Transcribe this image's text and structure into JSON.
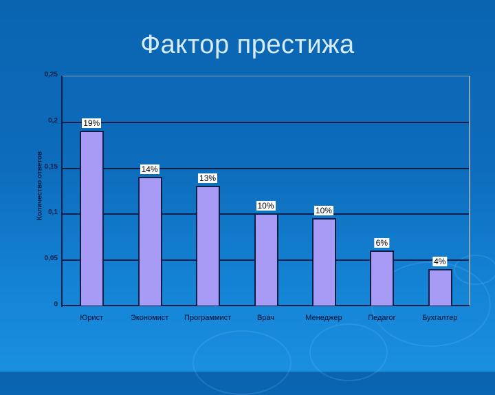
{
  "slide": {
    "title": "Фактор престижа"
  },
  "chart_data": {
    "type": "bar",
    "title": "Фактор престижа",
    "xlabel": "",
    "ylabel": "Количество ответов",
    "categories": [
      "Юрист",
      "Экономист",
      "Программист",
      "Врач",
      "Менеджер",
      "Педагог",
      "Бухгалтер"
    ],
    "values": [
      0.19,
      0.14,
      0.13,
      0.1,
      0.095,
      0.06,
      0.04
    ],
    "data_labels": [
      "19%",
      "14%",
      "13%",
      "10%",
      "10%",
      "6%",
      "4%"
    ],
    "ylim": [
      0,
      0.25
    ],
    "yticks": [
      "0",
      "0,05",
      "0,1",
      "0,15",
      "0,2",
      "0,25"
    ],
    "grid": true,
    "legend": null,
    "colors": {
      "bar_fill": "#a79bf5",
      "bar_border": "#0a1e4a",
      "background": "#0d6cbc",
      "title": "#d7ecfb"
    }
  }
}
